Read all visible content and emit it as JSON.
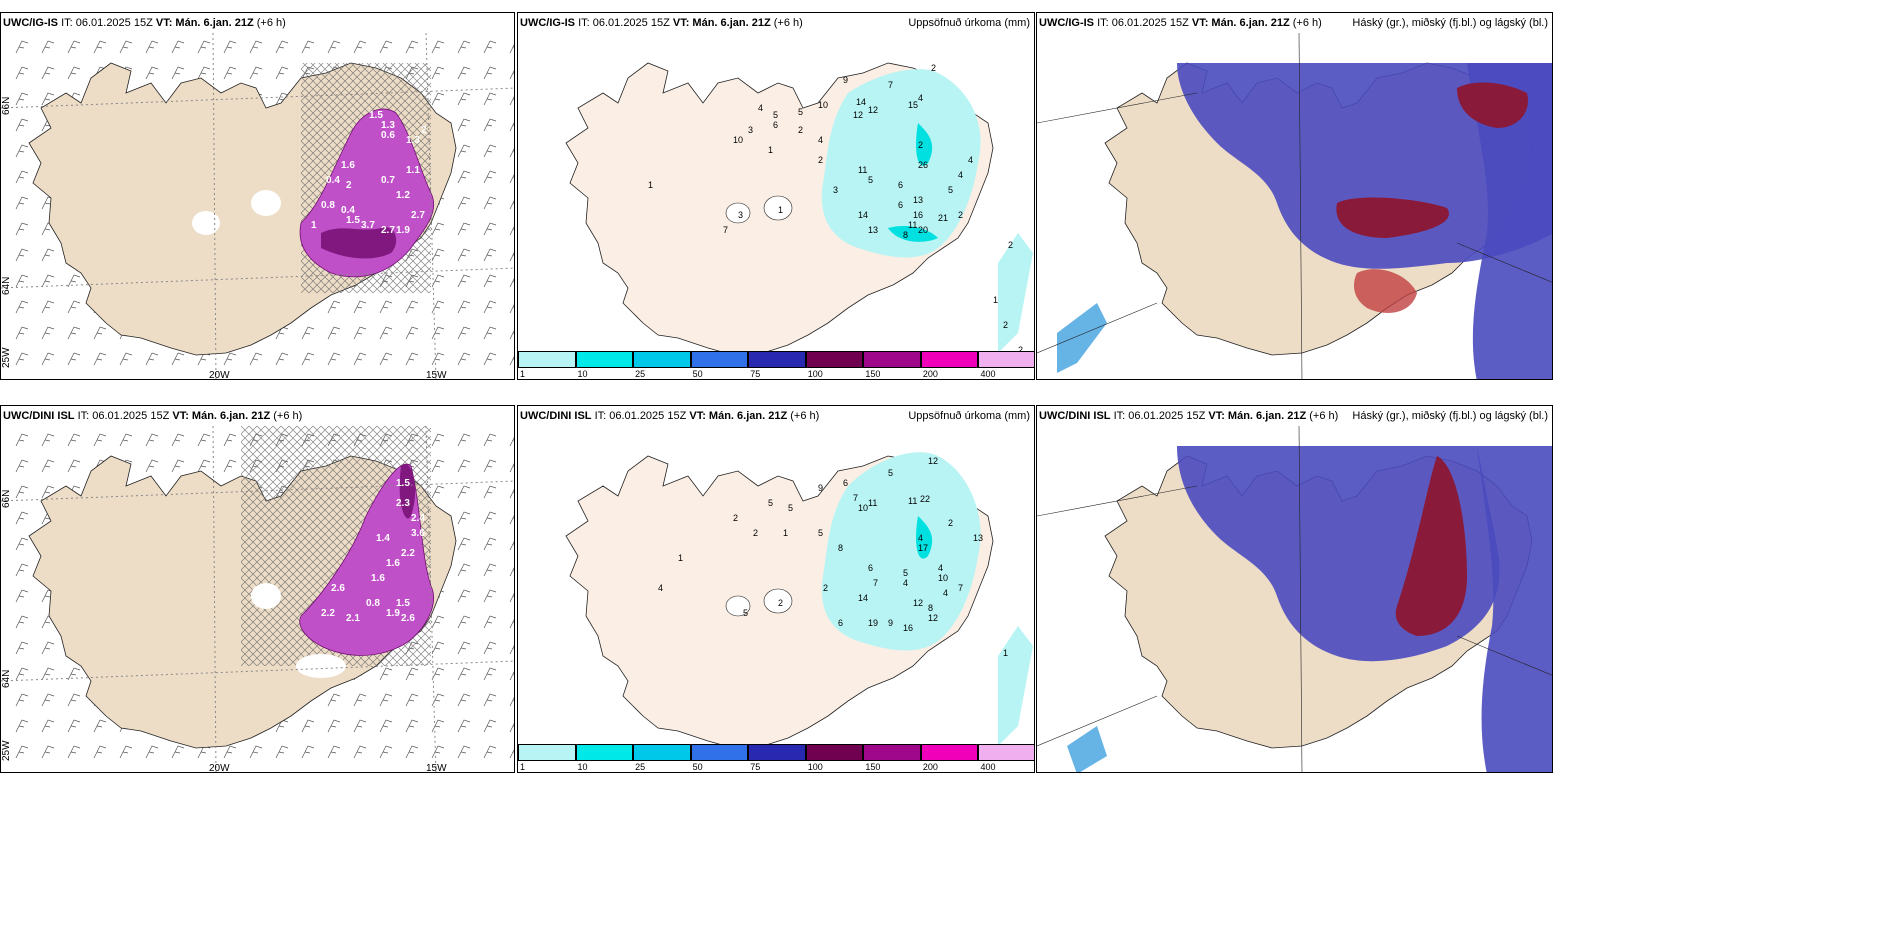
{
  "panels": {
    "p1": {
      "model": "UWC/IG-IS",
      "it": "IT: 06.01.2025 15Z",
      "vt": "VT: Mán. 6.jan. 21Z",
      "lead": "(+6 h)",
      "right": ""
    },
    "p2": {
      "model": "UWC/IG-IS",
      "it": "IT: 06.01.2025 15Z",
      "vt": "VT: Mán. 6.jan. 21Z",
      "lead": "(+6 h)",
      "right": "Uppsöfnuð úrkoma (mm)"
    },
    "p3": {
      "model": "UWC/IG-IS",
      "it": "IT: 06.01.2025 15Z",
      "vt": "VT: Mán. 6.jan. 21Z",
      "lead": "(+6 h)",
      "right": "Háský (gr.), miðský (fj.bl.) og lágský (bl.)"
    },
    "p4": {
      "model": "UWC/DINI ISL",
      "it": "IT: 06.01.2025 15Z",
      "vt": "VT: Mán. 6.jan. 21Z",
      "lead": "(+6 h)",
      "right": ""
    },
    "p5": {
      "model": "UWC/DINI ISL",
      "it": "IT: 06.01.2025 15Z",
      "vt": "VT: Mán. 6.jan. 21Z",
      "lead": "(+6 h)",
      "right": "Uppsöfnuð úrkoma (mm)"
    },
    "p6": {
      "model": "UWC/DINI ISL",
      "it": "IT: 06.01.2025 15Z",
      "vt": "VT: Mán. 6.jan. 21Z",
      "lead": "(+6 h)",
      "right": "Háský (gr.), miðský (fj.bl.) og lágský (bl.)"
    }
  },
  "axis": {
    "lat66": "66N",
    "lat64": "64N",
    "lon20": "20W",
    "lon15": "15W",
    "lon25": "25W"
  },
  "colorbar": {
    "labels": [
      "1",
      "10",
      "25",
      "50",
      "75",
      "100",
      "150",
      "200",
      "400"
    ],
    "colors": [
      "#b8f4f4",
      "#00e8e8",
      "#00c8e8",
      "#3070e8",
      "#2828b0",
      "#700050",
      "#a0088c",
      "#f000b8",
      "#f0b0f0"
    ]
  },
  "precip_ig": [
    "9",
    "7",
    "2",
    "4",
    "5",
    "5",
    "10",
    "12",
    "14",
    "12",
    "15",
    "4",
    "3",
    "6",
    "2",
    "4",
    "2",
    "10",
    "1",
    "2",
    "26",
    "11",
    "5",
    "6",
    "3",
    "13",
    "5",
    "4",
    "4",
    "14",
    "6",
    "16",
    "11",
    "13",
    "8",
    "20",
    "21",
    "2",
    "2",
    "1",
    "2",
    "2",
    "1",
    "1",
    "3",
    "7"
  ],
  "precip_dini": [
    "5",
    "9",
    "6",
    "12",
    "7",
    "5",
    "5",
    "10",
    "11",
    "11",
    "22",
    "2",
    "2",
    "1",
    "5",
    "4",
    "2",
    "8",
    "17",
    "13",
    "6",
    "5",
    "4",
    "2",
    "7",
    "4",
    "10",
    "4",
    "7",
    "14",
    "12",
    "8",
    "6",
    "19",
    "9",
    "16",
    "12",
    "1",
    "2",
    "5",
    "1",
    "2",
    "4"
  ],
  "snow_ig": [
    "1.5",
    "1.3",
    "0.6",
    "1.3",
    "2",
    "1.6",
    "0.4",
    "2",
    "0.7",
    "1.1",
    "1.2",
    "0.8",
    "0.4",
    "1",
    "1.5",
    "3.7",
    "2.7",
    "1.9",
    "2.7"
  ],
  "snow_dini": [
    "1.5",
    "2.3",
    "2.4",
    "1.4",
    "3.6",
    "2.2",
    "1.6",
    "1.6",
    "2.6",
    "0.8",
    "1.5",
    "1.9",
    "2.6",
    "2.2",
    "2.1"
  ]
}
